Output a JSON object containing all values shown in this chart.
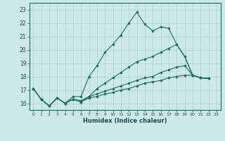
{
  "xlabel": "Humidex (Indice chaleur)",
  "bg_color": "#cce8e8",
  "line_color": "#1a6e62",
  "grid_color": "#aacfcf",
  "xlim": [
    -0.5,
    23.5
  ],
  "ylim": [
    15.5,
    23.5
  ],
  "yticks": [
    16,
    17,
    18,
    19,
    20,
    21,
    22,
    23
  ],
  "xticks": [
    0,
    1,
    2,
    3,
    4,
    5,
    6,
    7,
    8,
    9,
    10,
    11,
    12,
    13,
    14,
    15,
    16,
    17,
    18,
    19,
    20,
    21,
    22,
    23
  ],
  "lines": [
    {
      "x": [
        0,
        1,
        2,
        3,
        4,
        5,
        6,
        7,
        8,
        9,
        10,
        11,
        12,
        13,
        14,
        15,
        16,
        17,
        18,
        19,
        20,
        21,
        22
      ],
      "y": [
        17.1,
        16.3,
        15.8,
        16.4,
        16.0,
        16.5,
        16.5,
        18.0,
        18.8,
        19.8,
        20.4,
        21.1,
        22.0,
        22.8,
        21.9,
        21.4,
        21.7,
        21.6,
        20.4,
        19.5,
        18.1,
        17.9,
        17.85
      ]
    },
    {
      "x": [
        0,
        1,
        2,
        3,
        4,
        5,
        6,
        7,
        8,
        9,
        10,
        11,
        12,
        13,
        14,
        15,
        16,
        17,
        18,
        19,
        20,
        21,
        22
      ],
      "y": [
        17.1,
        16.3,
        15.8,
        16.4,
        16.0,
        16.3,
        16.2,
        16.5,
        17.1,
        17.5,
        17.9,
        18.3,
        18.7,
        19.1,
        19.3,
        19.5,
        19.8,
        20.1,
        20.4,
        19.5,
        18.1,
        17.9,
        17.85
      ]
    },
    {
      "x": [
        0,
        1,
        2,
        3,
        4,
        5,
        6,
        7,
        8,
        9,
        10,
        11,
        12,
        13,
        14,
        15,
        16,
        17,
        18,
        19,
        20,
        21,
        22
      ],
      "y": [
        17.1,
        16.3,
        15.8,
        16.4,
        16.0,
        16.3,
        16.1,
        16.5,
        16.7,
        16.9,
        17.1,
        17.3,
        17.5,
        17.7,
        17.9,
        18.0,
        18.3,
        18.5,
        18.7,
        18.8,
        18.1,
        17.9,
        17.85
      ]
    },
    {
      "x": [
        0,
        1,
        2,
        3,
        4,
        5,
        6,
        7,
        8,
        9,
        10,
        11,
        12,
        13,
        14,
        15,
        16,
        17,
        18,
        19,
        20,
        21,
        22
      ],
      "y": [
        17.1,
        16.3,
        15.8,
        16.4,
        16.0,
        16.3,
        16.1,
        16.4,
        16.5,
        16.7,
        16.8,
        17.0,
        17.1,
        17.3,
        17.5,
        17.6,
        17.7,
        17.9,
        18.0,
        18.1,
        18.1,
        17.9,
        17.85
      ]
    }
  ]
}
